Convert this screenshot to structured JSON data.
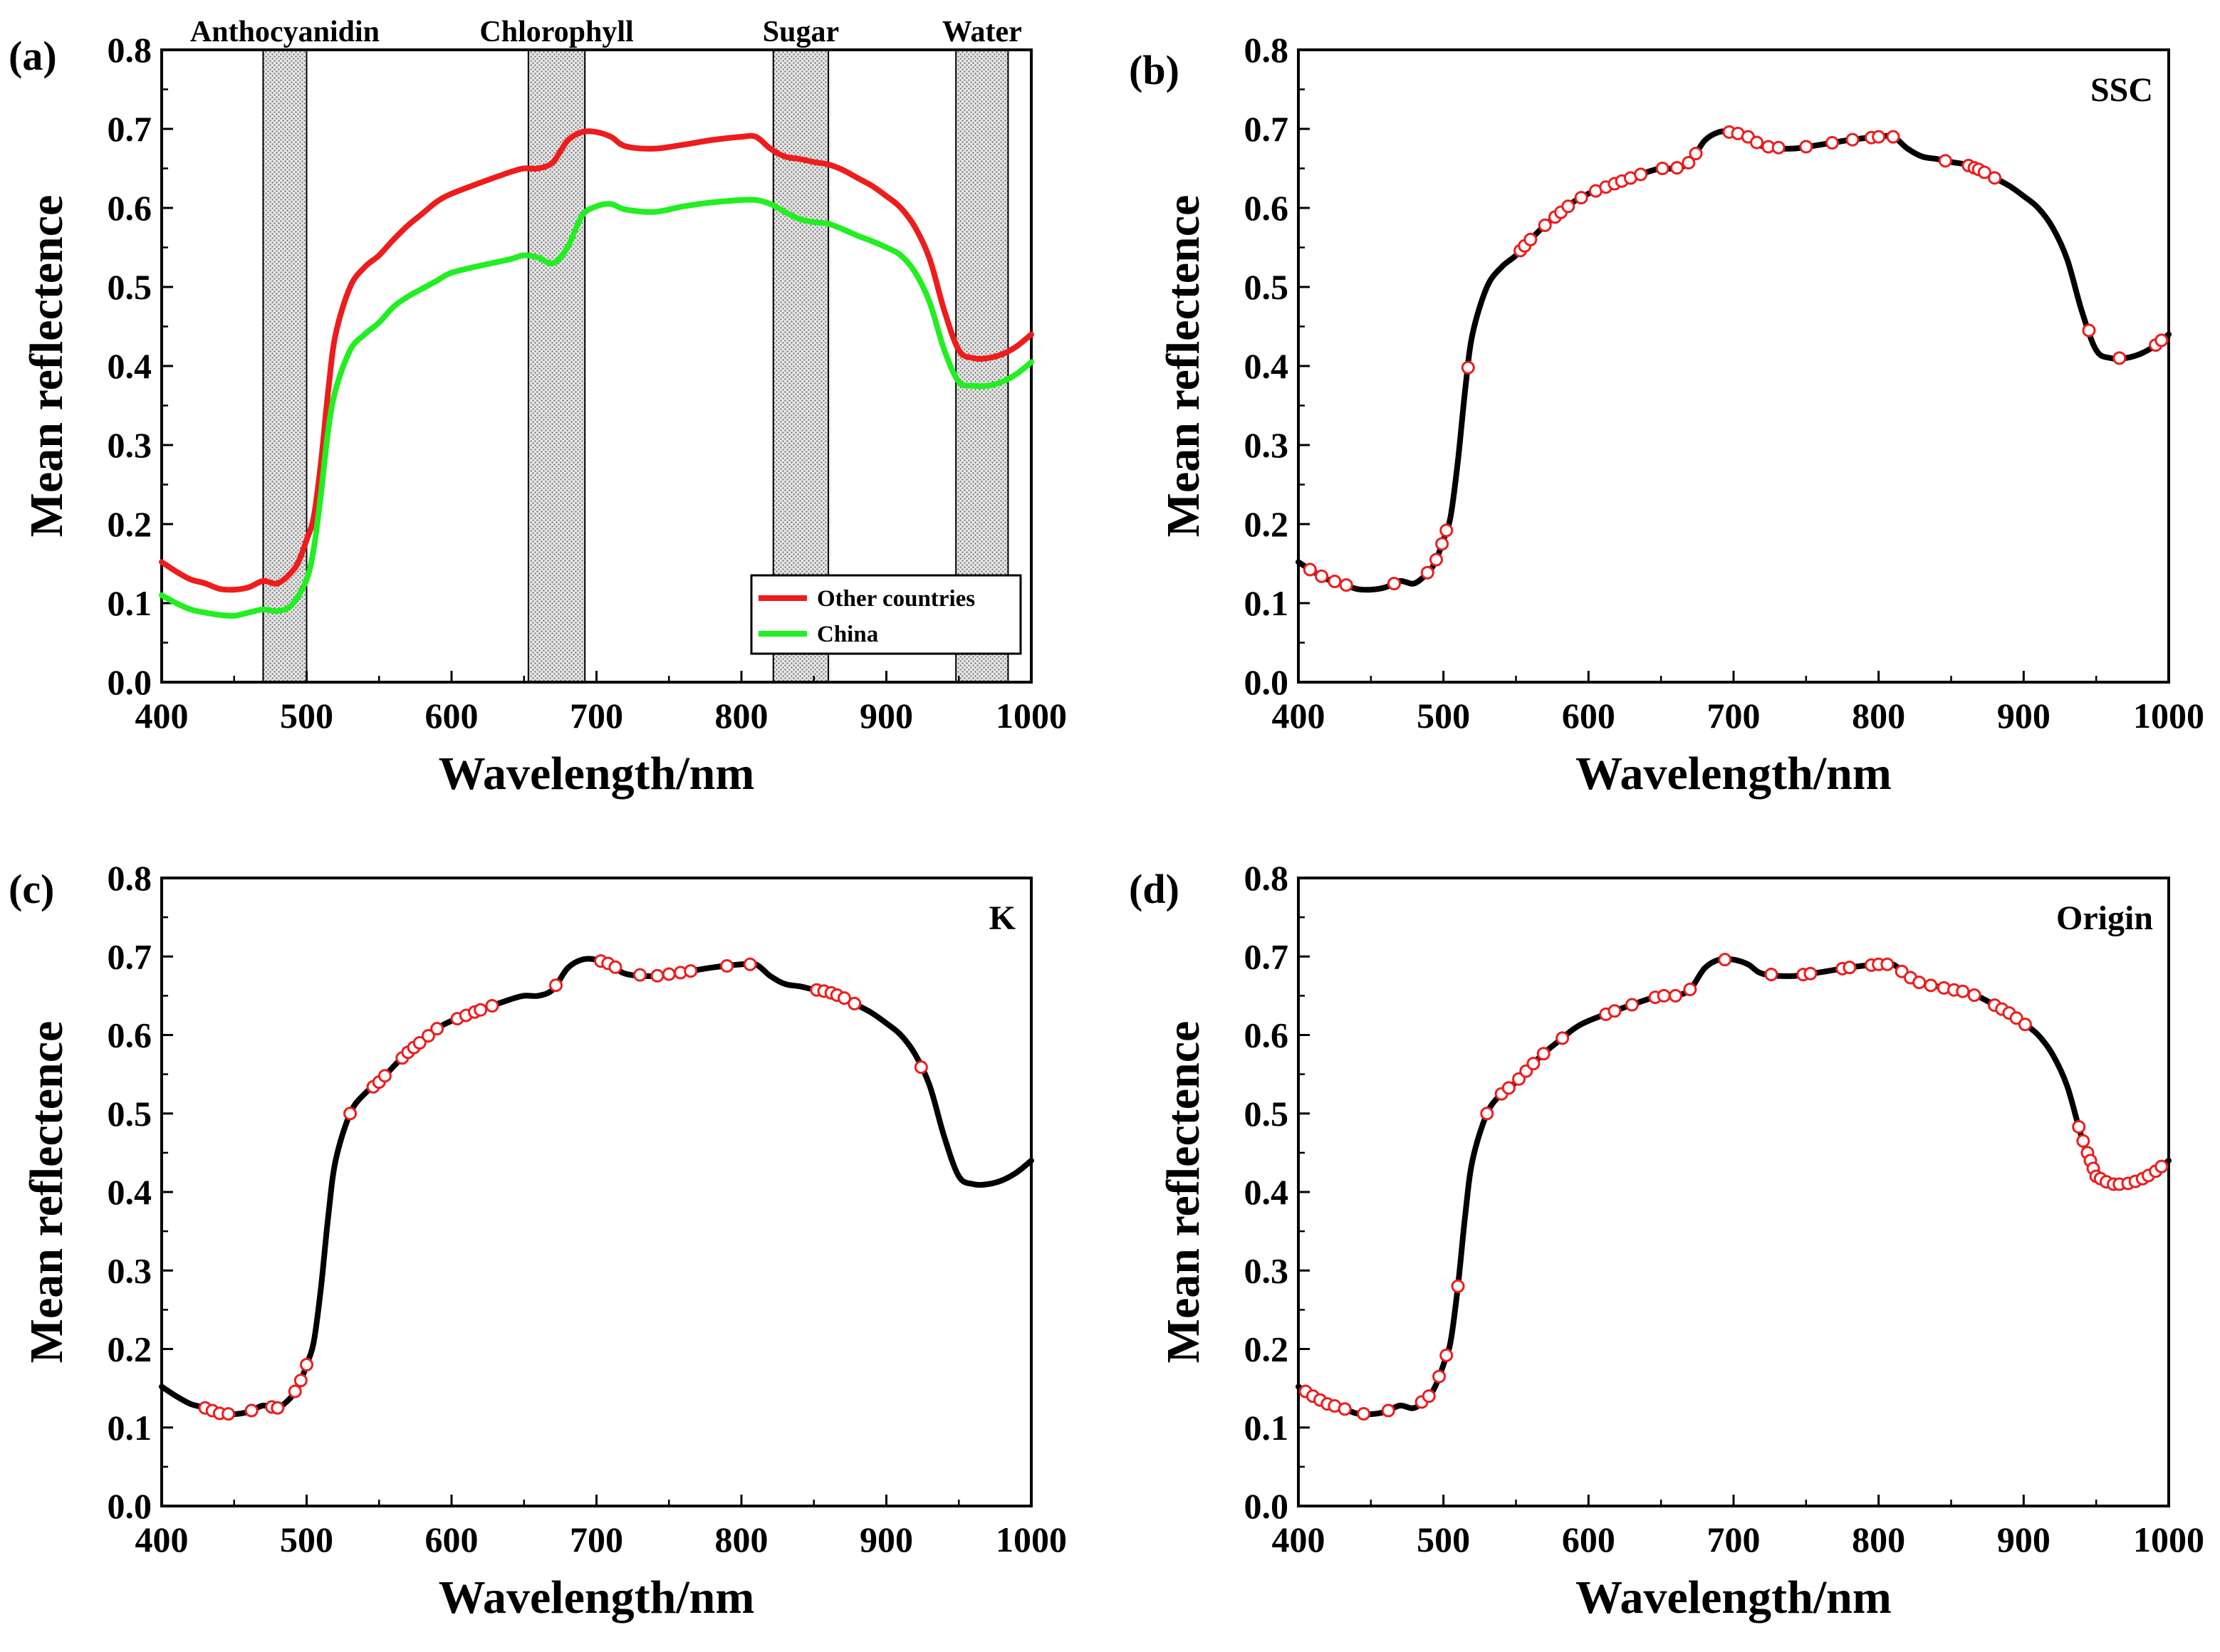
{
  "chart_data": [
    {
      "id": "a",
      "type": "line",
      "panel_label": "(a)",
      "xlabel": "Wavelength/nm",
      "ylabel": "Mean reflectence",
      "xlim": [
        400,
        1000
      ],
      "ylim": [
        0.0,
        0.8
      ],
      "x_ticks": [
        "400",
        "500",
        "600",
        "700",
        "800",
        "900",
        "1000"
      ],
      "y_ticks": [
        "0.0",
        "0.1",
        "0.2",
        "0.3",
        "0.4",
        "0.5",
        "0.6",
        "0.7",
        "0.8"
      ],
      "bands": [
        {
          "label": "Anthocyanidin",
          "from": 470,
          "to": 500
        },
        {
          "label": "Chlorophyll",
          "from": 653,
          "to": 692
        },
        {
          "label": "Sugar",
          "from": 822,
          "to": 860
        },
        {
          "label": "Water",
          "from": 948,
          "to": 984
        }
      ],
      "legend": {
        "position": "bottom-right"
      },
      "series": [
        {
          "name": "Other countries",
          "color": "#ee1c1c",
          "x": [
            400,
            410,
            420,
            430,
            440,
            450,
            460,
            470,
            480,
            490,
            495,
            500,
            505,
            510,
            515,
            520,
            530,
            540,
            550,
            560,
            570,
            580,
            590,
            600,
            620,
            640,
            650,
            660,
            670,
            680,
            690,
            700,
            710,
            720,
            740,
            760,
            780,
            800,
            810,
            820,
            830,
            840,
            850,
            860,
            870,
            880,
            890,
            900,
            910,
            920,
            930,
            940,
            950,
            960,
            970,
            980,
            990,
            1000
          ],
          "y": [
            0.152,
            0.14,
            0.13,
            0.125,
            0.118,
            0.117,
            0.12,
            0.128,
            0.125,
            0.14,
            0.155,
            0.18,
            0.21,
            0.28,
            0.37,
            0.44,
            0.5,
            0.525,
            0.54,
            0.56,
            0.578,
            0.593,
            0.608,
            0.618,
            0.632,
            0.645,
            0.65,
            0.65,
            0.658,
            0.685,
            0.696,
            0.696,
            0.69,
            0.678,
            0.675,
            0.68,
            0.686,
            0.69,
            0.69,
            0.675,
            0.665,
            0.662,
            0.658,
            0.655,
            0.648,
            0.638,
            0.628,
            0.615,
            0.6,
            0.575,
            0.535,
            0.47,
            0.42,
            0.41,
            0.41,
            0.415,
            0.425,
            0.44
          ]
        },
        {
          "name": "China",
          "color": "#22ee22",
          "x": [
            400,
            410,
            420,
            430,
            440,
            450,
            460,
            470,
            480,
            490,
            500,
            505,
            510,
            515,
            520,
            530,
            540,
            550,
            560,
            570,
            580,
            590,
            600,
            620,
            640,
            650,
            660,
            670,
            680,
            690,
            700,
            710,
            720,
            740,
            760,
            780,
            800,
            810,
            820,
            830,
            840,
            850,
            860,
            870,
            880,
            890,
            900,
            910,
            920,
            930,
            940,
            950,
            960,
            970,
            980,
            990,
            1000
          ],
          "y": [
            0.11,
            0.1,
            0.092,
            0.088,
            0.085,
            0.084,
            0.088,
            0.092,
            0.09,
            0.098,
            0.13,
            0.17,
            0.24,
            0.32,
            0.37,
            0.42,
            0.44,
            0.455,
            0.475,
            0.488,
            0.498,
            0.508,
            0.518,
            0.527,
            0.535,
            0.54,
            0.537,
            0.53,
            0.55,
            0.59,
            0.602,
            0.605,
            0.598,
            0.595,
            0.602,
            0.607,
            0.61,
            0.61,
            0.605,
            0.595,
            0.586,
            0.582,
            0.58,
            0.573,
            0.565,
            0.558,
            0.55,
            0.54,
            0.518,
            0.48,
            0.42,
            0.38,
            0.375,
            0.375,
            0.38,
            0.39,
            0.405
          ]
        }
      ]
    },
    {
      "id": "b",
      "type": "line",
      "panel_label": "(b)",
      "tag": "SSC",
      "xlabel": "Wavelength/nm",
      "ylabel": "Mean reflectence",
      "xlim": [
        400,
        1000
      ],
      "ylim": [
        0.0,
        0.8
      ],
      "x_ticks": [
        "400",
        "500",
        "600",
        "700",
        "800",
        "900",
        "1000"
      ],
      "y_ticks": [
        "0.0",
        "0.1",
        "0.2",
        "0.3",
        "0.4",
        "0.5",
        "0.6",
        "0.7",
        "0.8"
      ],
      "spectrum": {
        "color": "#000000",
        "x": [
          400,
          410,
          420,
          430,
          440,
          450,
          460,
          470,
          480,
          490,
          495,
          500,
          505,
          510,
          515,
          520,
          530,
          540,
          550,
          560,
          570,
          580,
          590,
          600,
          620,
          640,
          650,
          660,
          670,
          680,
          690,
          700,
          710,
          720,
          740,
          760,
          780,
          800,
          810,
          820,
          830,
          840,
          850,
          860,
          870,
          880,
          890,
          900,
          910,
          920,
          930,
          940,
          950,
          960,
          970,
          980,
          990,
          1000
        ],
        "y": [
          0.152,
          0.14,
          0.13,
          0.125,
          0.118,
          0.117,
          0.12,
          0.128,
          0.125,
          0.14,
          0.155,
          0.18,
          0.21,
          0.28,
          0.37,
          0.44,
          0.5,
          0.525,
          0.54,
          0.56,
          0.578,
          0.593,
          0.608,
          0.618,
          0.632,
          0.645,
          0.65,
          0.65,
          0.658,
          0.685,
          0.696,
          0.696,
          0.69,
          0.678,
          0.675,
          0.68,
          0.686,
          0.69,
          0.69,
          0.675,
          0.665,
          0.662,
          0.658,
          0.655,
          0.648,
          0.638,
          0.628,
          0.615,
          0.6,
          0.575,
          0.535,
          0.47,
          0.42,
          0.41,
          0.41,
          0.415,
          0.425,
          0.44
        ]
      },
      "selected_wavelengths": [
        408,
        416,
        425,
        433,
        466,
        489,
        495,
        499,
        502,
        517,
        553,
        556,
        560,
        570,
        577,
        581,
        586,
        595,
        605,
        612,
        618,
        623,
        629,
        636,
        651,
        661,
        669,
        674,
        697,
        703,
        710,
        716,
        724,
        731,
        750,
        768,
        782,
        795,
        800,
        810,
        846,
        862,
        866,
        869,
        873,
        880,
        945,
        966,
        991,
        995
      ],
      "marker": {
        "shape": "open-circle",
        "color": "#ee1c1c"
      }
    },
    {
      "id": "c",
      "type": "line",
      "panel_label": "(c)",
      "tag": "K",
      "xlabel": "Wavelength/nm",
      "ylabel": "Mean reflectence",
      "xlim": [
        400,
        1000
      ],
      "ylim": [
        0.0,
        0.8
      ],
      "x_ticks": [
        "400",
        "500",
        "600",
        "700",
        "800",
        "900",
        "1000"
      ],
      "y_ticks": [
        "0.0",
        "0.1",
        "0.2",
        "0.3",
        "0.4",
        "0.5",
        "0.6",
        "0.7",
        "0.8"
      ],
      "spectrum": {
        "color": "#000000",
        "x": [
          400,
          410,
          420,
          430,
          440,
          450,
          460,
          470,
          480,
          490,
          495,
          500,
          505,
          510,
          515,
          520,
          530,
          540,
          550,
          560,
          570,
          580,
          590,
          600,
          620,
          640,
          650,
          660,
          670,
          680,
          690,
          700,
          710,
          720,
          740,
          760,
          780,
          800,
          810,
          820,
          830,
          840,
          850,
          860,
          870,
          880,
          890,
          900,
          910,
          920,
          930,
          940,
          950,
          960,
          970,
          980,
          990,
          1000
        ],
        "y": [
          0.152,
          0.14,
          0.13,
          0.125,
          0.118,
          0.117,
          0.12,
          0.128,
          0.125,
          0.14,
          0.155,
          0.18,
          0.21,
          0.28,
          0.37,
          0.44,
          0.5,
          0.525,
          0.54,
          0.56,
          0.578,
          0.593,
          0.608,
          0.618,
          0.632,
          0.645,
          0.65,
          0.65,
          0.658,
          0.685,
          0.696,
          0.696,
          0.69,
          0.678,
          0.675,
          0.68,
          0.686,
          0.69,
          0.69,
          0.675,
          0.665,
          0.662,
          0.658,
          0.655,
          0.648,
          0.638,
          0.628,
          0.615,
          0.6,
          0.575,
          0.535,
          0.47,
          0.42,
          0.41,
          0.41,
          0.415,
          0.425,
          0.44
        ]
      },
      "selected_wavelengths": [
        430,
        435,
        440,
        446,
        462,
        476,
        480,
        492,
        496,
        500,
        530,
        546,
        550,
        554,
        566,
        570,
        574,
        578,
        584,
        590,
        604,
        610,
        616,
        620,
        628,
        672,
        703,
        708,
        713,
        730,
        742,
        750,
        758,
        765,
        790,
        806,
        852,
        857,
        862,
        866,
        871,
        878,
        924
      ],
      "marker": {
        "shape": "open-circle",
        "color": "#ee1c1c"
      }
    },
    {
      "id": "d",
      "type": "line",
      "panel_label": "(d)",
      "tag": "Origin",
      "xlabel": "Wavelength/nm",
      "ylabel": "Mean reflectence",
      "xlim": [
        400,
        1000
      ],
      "ylim": [
        0.0,
        0.8
      ],
      "x_ticks": [
        "400",
        "500",
        "600",
        "700",
        "800",
        "900",
        "1000"
      ],
      "y_ticks": [
        "0.0",
        "0.1",
        "0.2",
        "0.3",
        "0.4",
        "0.5",
        "0.6",
        "0.7",
        "0.8"
      ],
      "spectrum": {
        "color": "#000000",
        "x": [
          400,
          410,
          420,
          430,
          440,
          450,
          460,
          470,
          480,
          490,
          495,
          500,
          505,
          510,
          515,
          520,
          530,
          540,
          550,
          560,
          570,
          580,
          590,
          600,
          620,
          640,
          650,
          660,
          670,
          680,
          690,
          700,
          710,
          720,
          740,
          760,
          780,
          800,
          810,
          820,
          830,
          840,
          850,
          860,
          870,
          880,
          890,
          900,
          910,
          920,
          930,
          940,
          950,
          960,
          970,
          980,
          990,
          1000
        ],
        "y": [
          0.152,
          0.14,
          0.13,
          0.125,
          0.118,
          0.117,
          0.12,
          0.128,
          0.125,
          0.14,
          0.155,
          0.18,
          0.21,
          0.28,
          0.37,
          0.44,
          0.5,
          0.525,
          0.54,
          0.56,
          0.578,
          0.593,
          0.608,
          0.618,
          0.632,
          0.645,
          0.65,
          0.65,
          0.658,
          0.685,
          0.696,
          0.696,
          0.69,
          0.678,
          0.675,
          0.68,
          0.686,
          0.69,
          0.69,
          0.675,
          0.665,
          0.662,
          0.658,
          0.655,
          0.648,
          0.638,
          0.628,
          0.615,
          0.6,
          0.575,
          0.535,
          0.47,
          0.42,
          0.41,
          0.41,
          0.415,
          0.425,
          0.44
        ]
      },
      "selected_wavelengths": [
        405,
        410,
        415,
        420,
        425,
        432,
        445,
        462,
        485,
        490,
        497,
        502,
        510,
        530,
        540,
        545,
        552,
        557,
        562,
        569,
        582,
        612,
        618,
        630,
        646,
        652,
        660,
        670,
        694,
        726,
        748,
        753,
        775,
        780,
        795,
        800,
        806,
        816,
        822,
        828,
        836,
        845,
        852,
        858,
        866,
        880,
        885,
        890,
        895,
        901,
        938,
        941,
        944,
        946,
        948,
        950,
        953,
        957,
        962,
        966,
        972,
        977,
        982,
        986,
        991,
        995
      ],
      "marker": {
        "shape": "open-circle",
        "color": "#ee1c1c"
      }
    }
  ]
}
